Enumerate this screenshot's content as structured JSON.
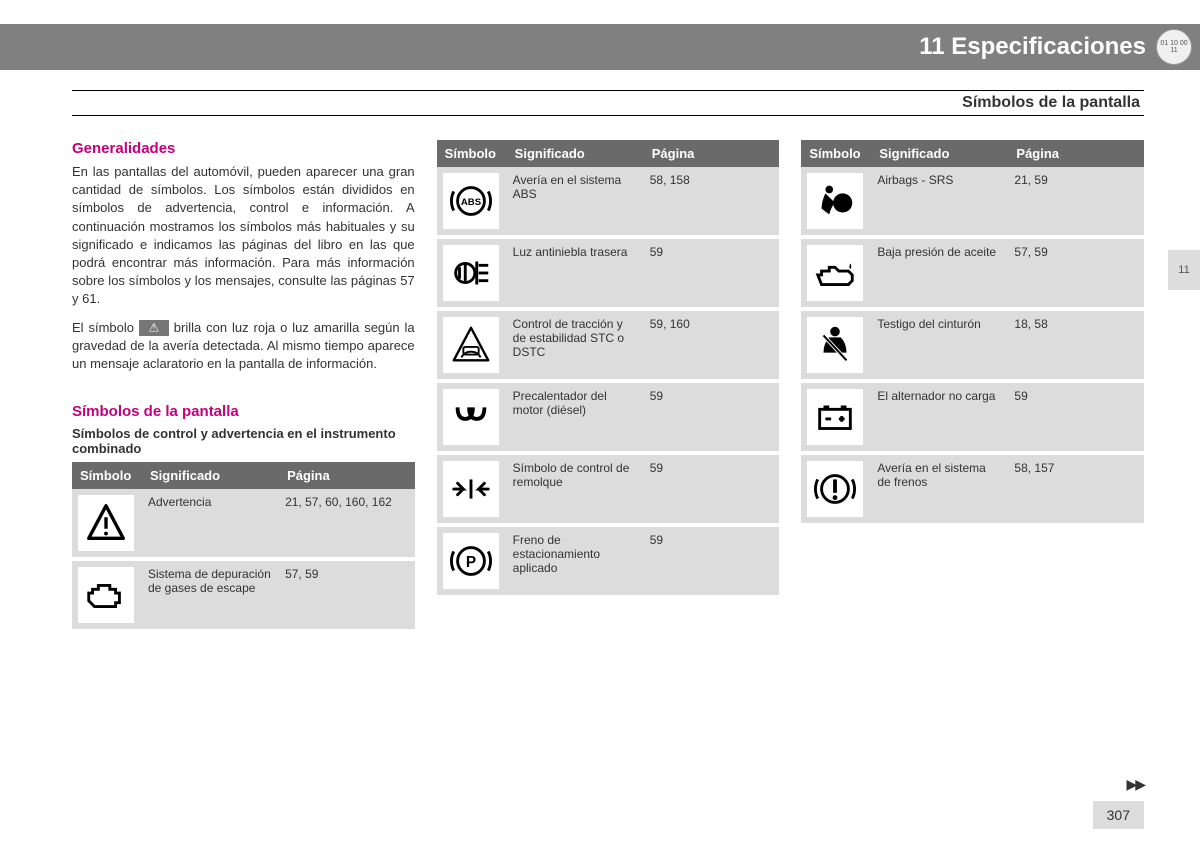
{
  "header": {
    "chapter_num": "11",
    "chapter_title": "Especificaciones",
    "logo_text": "01 10\n00 11"
  },
  "subtitle": "Símbolos de la pantalla",
  "side_tab": "11",
  "section1": {
    "heading": "Generalidades",
    "para1": "En las pantallas del automóvil, pueden aparecer una gran cantidad de símbolos. Los símbolos están divididos en símbolos de advertencia, control e información. A continuación mostramos los símbolos más habituales y su significado e indicamos las páginas del libro en las que podrá encontrar más información. Para más información sobre los símbolos y los mensajes, consulte las páginas 57 y 61.",
    "para2_a": "El símbolo ",
    "para2_b": " brilla con luz roja o luz amarilla según la gravedad de la avería detectada. Al mismo tiempo aparece un mensaje aclaratorio en la pantalla de información."
  },
  "section2": {
    "heading": "Símbolos de la pantalla",
    "sub": "Símbolos de control y advertencia en el instrumento combinado"
  },
  "table_headers": {
    "c1": "Símbolo",
    "c2": "Significado",
    "c3": "Página"
  },
  "tableA": [
    {
      "icon": "warning",
      "meaning": "Advertencia",
      "page": "21, 57, 60, 160, 162"
    },
    {
      "icon": "engine",
      "meaning": "Sistema de depuración de gases de escape",
      "page": "57, 59"
    }
  ],
  "tableB": [
    {
      "icon": "abs",
      "meaning": "Avería en el sistema ABS",
      "page": "58, 158"
    },
    {
      "icon": "rearfog",
      "meaning": "Luz antiniebla trasera",
      "page": "59"
    },
    {
      "icon": "traction",
      "meaning": "Control de tracción y de estabilidad STC o DSTC",
      "page": "59, 160"
    },
    {
      "icon": "preheat",
      "meaning": "Precalentador del motor (diésel)",
      "page": "59"
    },
    {
      "icon": "trailer",
      "meaning": "Símbolo de control de remolque",
      "page": "59"
    },
    {
      "icon": "parking",
      "meaning": "Freno de estacionamiento aplicado",
      "page": "59"
    }
  ],
  "tableC": [
    {
      "icon": "airbag",
      "meaning": "Airbags - SRS",
      "page": "21, 59"
    },
    {
      "icon": "oil",
      "meaning": "Baja presión de aceite",
      "page": "57, 59"
    },
    {
      "icon": "seatbelt",
      "meaning": "Testigo del cinturón",
      "page": "18, 58"
    },
    {
      "icon": "battery",
      "meaning": "El alternador no carga",
      "page": "59"
    },
    {
      "icon": "brake",
      "meaning": "Avería en el sistema de frenos",
      "page": "58, 157"
    }
  ],
  "page_number": "307",
  "continue": "▶▶",
  "colors": {
    "header_bg": "#808080",
    "heading": "#c4007a",
    "cell_bg": "#dcdcdc",
    "th_bg": "#6a6a6a"
  }
}
